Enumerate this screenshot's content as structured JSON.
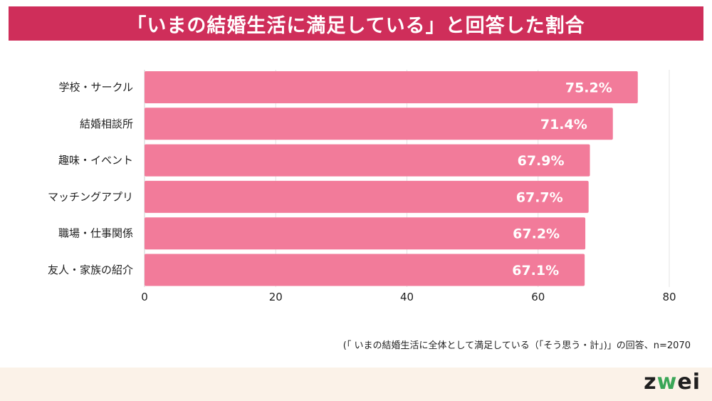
{
  "header": {
    "title": "「いまの結婚生活に満足している」と回答した割合"
  },
  "chart_data": {
    "type": "bar",
    "orientation": "horizontal",
    "categories": [
      "学校・サークル",
      "結婚相談所",
      "趣味・イベント",
      "マッチングアプリ",
      "職場・仕事関係",
      "友人・家族の紹介"
    ],
    "values": [
      75.2,
      71.4,
      67.9,
      67.7,
      67.2,
      67.1
    ],
    "value_labels": [
      "75.2%",
      "71.4%",
      "67.9%",
      "67.7%",
      "67.2%",
      "67.1%"
    ],
    "xlim": [
      0,
      80
    ],
    "xticks": [
      0,
      20,
      40,
      60,
      80
    ],
    "grid": true,
    "bar_color": "#f27b9a"
  },
  "footnote": "(「 いまの結婚生活に全体として満足している（「そう思う・計」)」の回答、n=2070",
  "logo": {
    "pre": "z",
    "mid": "w",
    "post": "ei"
  },
  "colors": {
    "header_bg": "#cf2e5a",
    "footer_bg": "#fbf2e8",
    "logo_accent": "#3aa657"
  }
}
